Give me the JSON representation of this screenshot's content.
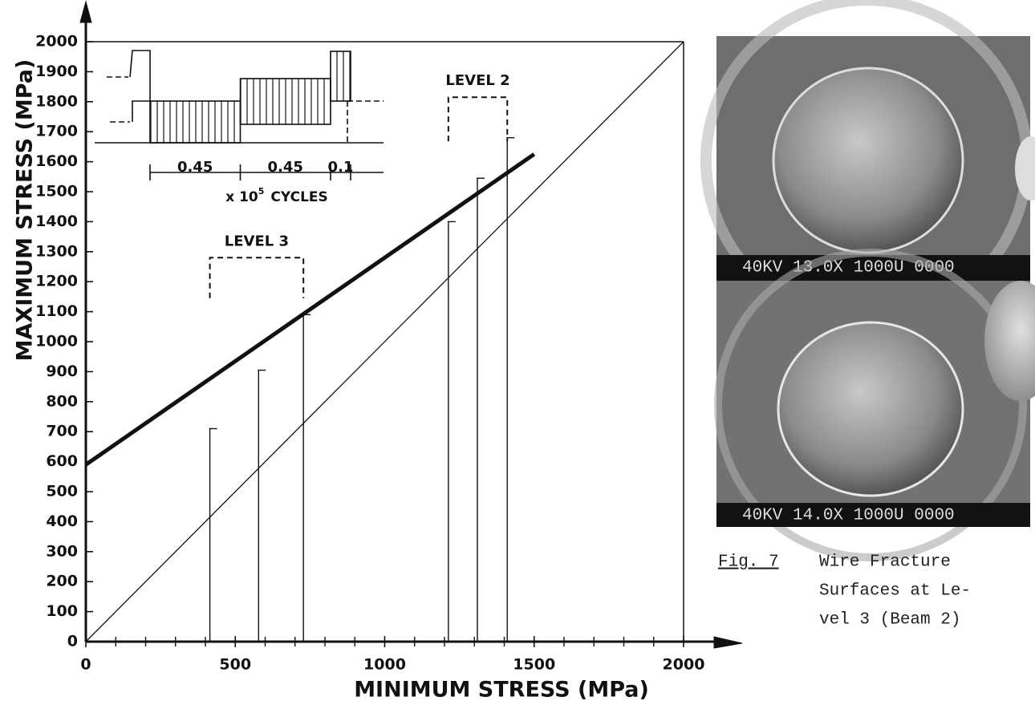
{
  "chart_data": {
    "type": "vline",
    "xlabel": "MINIMUM  STRESS (MPa)",
    "ylabel": "MAXIMUM  STRESS (MPa)",
    "xlim": [
      0,
      2000
    ],
    "ylim": [
      0,
      2000
    ],
    "xticks": [
      0,
      500,
      1000,
      1500,
      2000
    ],
    "xminorticks": [
      100,
      200,
      300,
      400,
      600,
      700,
      800,
      900,
      1100,
      1200,
      1300,
      1400,
      1600,
      1700,
      1800,
      1900
    ],
    "yticks": [
      0,
      100,
      200,
      300,
      400,
      500,
      600,
      700,
      800,
      900,
      1000,
      1100,
      1200,
      1300,
      1400,
      1500,
      1600,
      1700,
      1800,
      1900,
      2000
    ],
    "x": [
      415,
      578,
      728,
      1213,
      1310,
      1410
    ],
    "values": [
      710,
      905,
      1090,
      1400,
      1545,
      1680
    ],
    "color": "#111111",
    "lines": [
      {
        "x": [
          0,
          1500
        ],
        "values": [
          590,
          1625
        ],
        "width": 5
      },
      {
        "x": [
          0,
          2000
        ],
        "values": [
          0,
          2000
        ],
        "width": 1.3
      }
    ],
    "annotations": [
      {
        "text": "LEVEL 3",
        "x": [
          415,
          728
        ],
        "y": 1280,
        "y_low": 1145
      },
      {
        "text": "LEVEL 2",
        "x": [
          1213,
          1410
        ],
        "y": 1815,
        "y_low": 1668
      }
    ],
    "inset": {
      "durations": [
        0.45,
        0.45,
        0.1
      ],
      "unit_prefix": "x 10",
      "unit_exponent": "5",
      "unit_suffix": "CYCLES"
    }
  },
  "photos": [
    {
      "scale_text": "40KV  13.0X  1000U 0000"
    },
    {
      "scale_text": "40KV  14.0X  1000U 0000"
    }
  ],
  "figure_caption": {
    "label": "Fig. 7",
    "lines": [
      "Wire Fracture",
      "Surfaces at Le-",
      "vel 3 (Beam 2)"
    ]
  }
}
